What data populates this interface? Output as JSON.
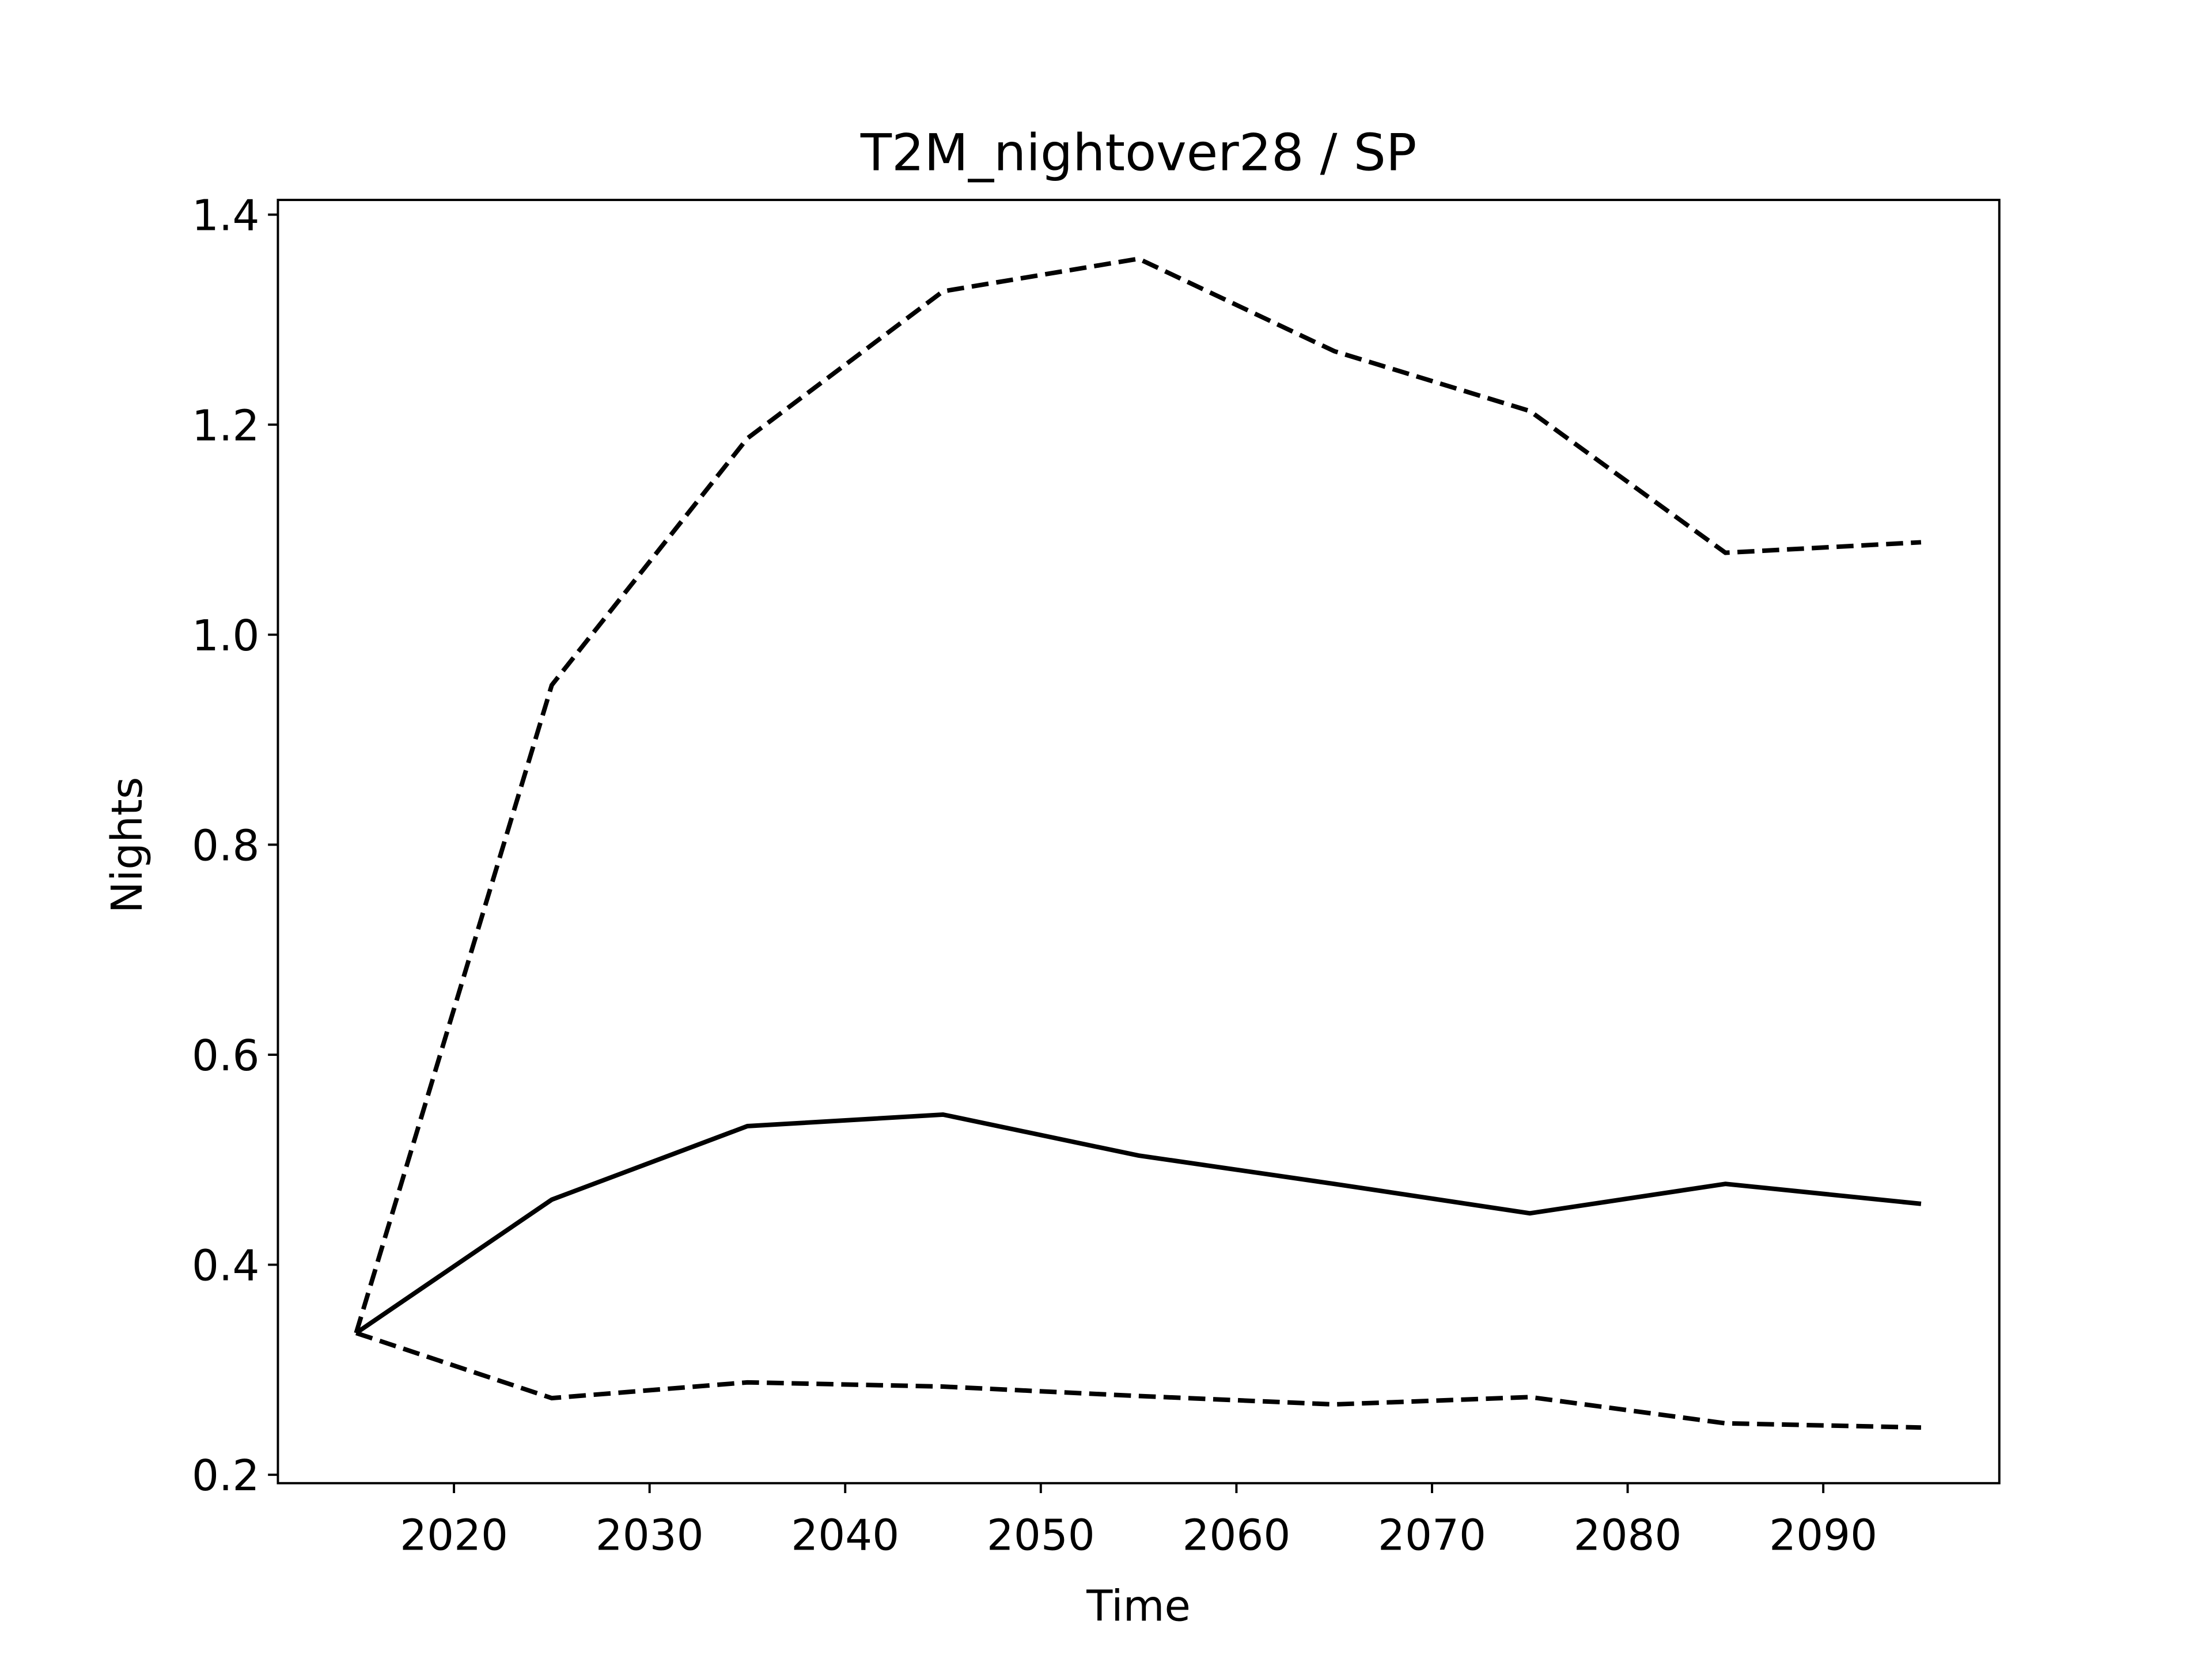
{
  "chart_data": {
    "type": "line",
    "title": "T2M_nightover28 / SP",
    "x_label": "Time",
    "y_label": "Nights",
    "x": [
      2015,
      2025,
      2035,
      2045,
      2055,
      2065,
      2075,
      2085,
      2095
    ],
    "series": [
      {
        "color": "#000000",
        "dashed": false,
        "values": [
          0.335,
          0.462,
          0.532,
          0.543,
          0.504,
          0.477,
          0.449,
          0.477,
          0.458
        ]
      },
      {
        "color": "#000000",
        "dashed": true,
        "values": [
          0.335,
          0.952,
          1.187,
          1.327,
          1.358,
          1.27,
          1.213,
          1.078,
          1.088
        ]
      },
      {
        "color": "#000000",
        "dashed": true,
        "values": [
          0.335,
          0.273,
          0.288,
          0.284,
          0.275,
          0.267,
          0.274,
          0.249,
          0.245
        ]
      }
    ],
    "xlim": [
      2011,
      2099
    ],
    "xticks": [
      2020,
      2030,
      2040,
      2050,
      2060,
      2070,
      2080,
      2090
    ],
    "ylim": [
      0.192,
      1.414
    ],
    "yticks": [
      {
        "value": 0.2,
        "label": "0.2"
      },
      {
        "value": 0.4,
        "label": "0.4"
      },
      {
        "value": 0.6,
        "label": "0.6"
      },
      {
        "value": 0.8,
        "label": "0.8"
      },
      {
        "value": 1.0,
        "label": "1.0"
      },
      {
        "value": 1.2,
        "label": "1.2"
      },
      {
        "value": 1.4,
        "label": "1.4"
      }
    ],
    "grid": false
  }
}
